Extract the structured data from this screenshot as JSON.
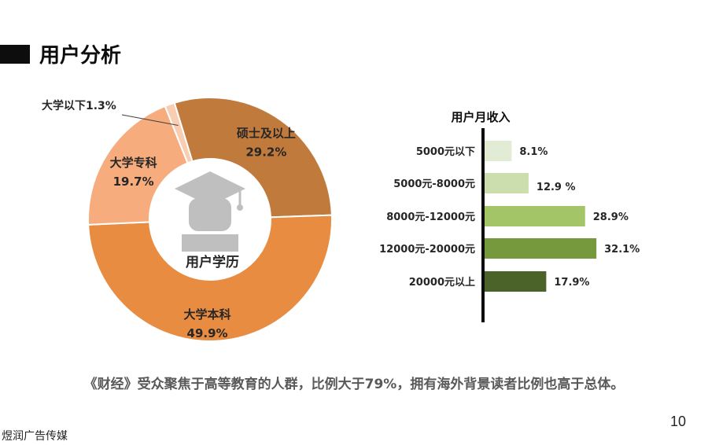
{
  "header": {
    "title": "用户分析"
  },
  "chart_data": [
    {
      "type": "pie",
      "center_label": "用户学历",
      "center_icon": "graduate-icon",
      "categories": [
        "硕士及以上",
        "大学本科",
        "大学专科",
        "大学以下"
      ],
      "values": [
        29.2,
        49.9,
        19.7,
        1.3
      ],
      "value_labels": [
        "29.2%",
        "49.9%",
        "19.7%",
        "1.3%"
      ],
      "colors": [
        "#c07a3c",
        "#e88c42",
        "#f6ac7c",
        "#f8cdb1"
      ]
    },
    {
      "type": "bar",
      "orientation": "horizontal",
      "title": "用户月收入",
      "categories": [
        "5000元以下",
        "5000元-8000元",
        "8000元-12000元",
        "12000元-20000元",
        "20000元以上"
      ],
      "values": [
        8.1,
        12.9,
        28.9,
        32.1,
        17.9
      ],
      "value_labels": [
        "8.1%",
        "12.9 %",
        "28.9%",
        "32.1%",
        "17.9%"
      ],
      "colors": [
        "#e2ecd5",
        "#cddeae",
        "#a4c468",
        "#77993e",
        "#4b6228"
      ]
    }
  ],
  "caption": "《财经》受众聚焦于高等教育的人群，比例大于79%，拥有海外背景读者比例也高于总体。",
  "page_number": "10",
  "footer": "煜润广告传媒"
}
